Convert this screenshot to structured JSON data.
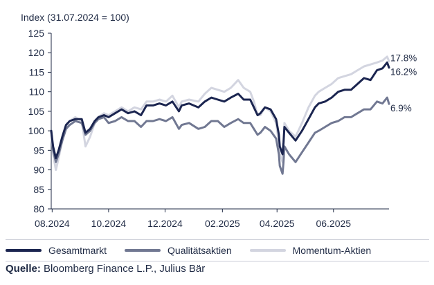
{
  "chart_data": {
    "type": "line",
    "ylabel": "Index (31.07.2024 = 100)",
    "ylim": [
      80,
      125
    ],
    "yticks": [
      80,
      85,
      90,
      95,
      100,
      105,
      110,
      115,
      120,
      125
    ],
    "xlim": [
      "2024-07-31",
      "2025-07-31"
    ],
    "xticks": [
      "2024-08-01",
      "2024-10-01",
      "2024-12-01",
      "2025-02-01",
      "2025-04-01",
      "2025-06-01"
    ],
    "xtick_labels": [
      "08.2024",
      "10.2024",
      "12.2024",
      "02.2025",
      "04.2025",
      "06.2025"
    ],
    "grid": false,
    "legend_position": "bottom",
    "series": [
      {
        "name": "Gesamtmarkt",
        "color": "#1b2550",
        "end_label": "16.2%",
        "x": [
          "2024-07-31",
          "2024-08-02",
          "2024-08-05",
          "2024-08-08",
          "2024-08-12",
          "2024-08-16",
          "2024-08-20",
          "2024-08-26",
          "2024-09-02",
          "2024-09-06",
          "2024-09-11",
          "2024-09-16",
          "2024-09-20",
          "2024-09-26",
          "2024-10-01",
          "2024-10-08",
          "2024-10-15",
          "2024-10-22",
          "2024-10-29",
          "2024-11-05",
          "2024-11-11",
          "2024-11-18",
          "2024-11-25",
          "2024-12-02",
          "2024-12-09",
          "2024-12-16",
          "2024-12-19",
          "2024-12-27",
          "2025-01-06",
          "2025-01-13",
          "2025-01-20",
          "2025-01-27",
          "2025-02-03",
          "2025-02-10",
          "2025-02-18",
          "2025-02-24",
          "2025-03-03",
          "2025-03-07",
          "2025-03-11",
          "2025-03-14",
          "2025-03-19",
          "2025-03-25",
          "2025-03-31",
          "2025-04-03",
          "2025-04-04",
          "2025-04-07",
          "2025-04-08",
          "2025-04-09",
          "2025-04-14",
          "2025-04-21",
          "2025-04-28",
          "2025-05-05",
          "2025-05-12",
          "2025-05-16",
          "2025-05-23",
          "2025-05-30",
          "2025-06-06",
          "2025-06-13",
          "2025-06-20",
          "2025-06-27",
          "2025-07-04",
          "2025-07-11",
          "2025-07-18",
          "2025-07-24",
          "2025-07-29",
          "2025-07-31"
        ],
        "values": [
          100,
          96,
          93,
          95,
          98.5,
          101.5,
          102.5,
          103,
          103,
          99.5,
          100.5,
          102.5,
          103.5,
          104,
          103.5,
          104.5,
          105.5,
          104.5,
          105,
          104,
          106.5,
          106.5,
          107,
          106.5,
          107.5,
          105,
          106.5,
          107,
          106,
          107.5,
          108.5,
          108,
          107.5,
          108.5,
          109.5,
          108,
          108,
          106,
          104,
          104.5,
          106,
          105.5,
          103,
          99,
          96,
          94,
          97,
          101,
          99.5,
          97.5,
          100,
          103,
          106,
          107,
          107.5,
          108.5,
          110,
          110.5,
          110.5,
          112,
          113.5,
          113,
          115.5,
          116,
          117.5,
          116.2
        ]
      },
      {
        "name": "Qualitätsaktien",
        "color": "#717892",
        "end_label": "6.9%",
        "x": [
          "2024-07-31",
          "2024-08-02",
          "2024-08-05",
          "2024-08-08",
          "2024-08-12",
          "2024-08-16",
          "2024-08-20",
          "2024-08-26",
          "2024-09-02",
          "2024-09-06",
          "2024-09-11",
          "2024-09-16",
          "2024-09-20",
          "2024-09-26",
          "2024-10-01",
          "2024-10-08",
          "2024-10-15",
          "2024-10-22",
          "2024-10-29",
          "2024-11-05",
          "2024-11-11",
          "2024-11-18",
          "2024-11-25",
          "2024-12-02",
          "2024-12-09",
          "2024-12-16",
          "2024-12-19",
          "2024-12-27",
          "2025-01-06",
          "2025-01-13",
          "2025-01-20",
          "2025-01-27",
          "2025-02-03",
          "2025-02-10",
          "2025-02-18",
          "2025-02-24",
          "2025-03-03",
          "2025-03-07",
          "2025-03-11",
          "2025-03-14",
          "2025-03-19",
          "2025-03-25",
          "2025-03-31",
          "2025-04-03",
          "2025-04-04",
          "2025-04-07",
          "2025-04-08",
          "2025-04-09",
          "2025-04-14",
          "2025-04-21",
          "2025-04-28",
          "2025-05-05",
          "2025-05-12",
          "2025-05-16",
          "2025-05-23",
          "2025-05-30",
          "2025-06-06",
          "2025-06-13",
          "2025-06-20",
          "2025-06-27",
          "2025-07-04",
          "2025-07-11",
          "2025-07-18",
          "2025-07-24",
          "2025-07-29",
          "2025-07-31"
        ],
        "values": [
          100,
          95,
          92,
          94,
          97.5,
          100.5,
          101.5,
          102.5,
          102,
          99,
          100,
          102,
          103,
          103.5,
          102,
          102.5,
          103.5,
          102.5,
          102.5,
          101,
          102.5,
          102.5,
          103,
          102.5,
          103.5,
          100.5,
          101.5,
          102,
          100.5,
          101,
          102.5,
          102.5,
          101,
          102,
          103,
          102,
          102,
          100.5,
          99,
          99.5,
          101,
          100,
          98,
          94,
          91,
          89,
          92,
          96,
          94,
          92,
          94.5,
          97,
          99.5,
          100,
          101,
          102,
          102.5,
          103.5,
          103.5,
          104.5,
          105.5,
          105.5,
          107.5,
          107,
          108.5,
          106.9
        ]
      },
      {
        "name": "Momentum-Aktien",
        "color": "#d3d5e0",
        "end_label": "17.8%",
        "x": [
          "2024-07-31",
          "2024-08-02",
          "2024-08-05",
          "2024-08-08",
          "2024-08-12",
          "2024-08-16",
          "2024-08-20",
          "2024-08-26",
          "2024-09-02",
          "2024-09-06",
          "2024-09-11",
          "2024-09-16",
          "2024-09-20",
          "2024-09-26",
          "2024-10-01",
          "2024-10-08",
          "2024-10-15",
          "2024-10-22",
          "2024-10-29",
          "2024-11-05",
          "2024-11-11",
          "2024-11-18",
          "2024-11-25",
          "2024-12-02",
          "2024-12-09",
          "2024-12-16",
          "2024-12-19",
          "2024-12-27",
          "2025-01-06",
          "2025-01-13",
          "2025-01-20",
          "2025-01-27",
          "2025-02-03",
          "2025-02-10",
          "2025-02-18",
          "2025-02-24",
          "2025-03-03",
          "2025-03-07",
          "2025-03-11",
          "2025-03-14",
          "2025-03-19",
          "2025-03-25",
          "2025-03-31",
          "2025-04-03",
          "2025-04-04",
          "2025-04-07",
          "2025-04-08",
          "2025-04-09",
          "2025-04-14",
          "2025-04-21",
          "2025-04-28",
          "2025-05-05",
          "2025-05-12",
          "2025-05-16",
          "2025-05-23",
          "2025-05-30",
          "2025-06-06",
          "2025-06-13",
          "2025-06-20",
          "2025-06-27",
          "2025-07-04",
          "2025-07-11",
          "2025-07-18",
          "2025-07-24",
          "2025-07-29",
          "2025-07-31"
        ],
        "values": [
          100,
          94,
          90,
          93,
          97.5,
          101,
          102.5,
          103.5,
          102.5,
          96,
          98.5,
          102,
          103.5,
          104.5,
          104,
          105,
          106,
          105,
          106,
          105.5,
          107.5,
          107.5,
          108,
          107.5,
          109,
          106,
          107.5,
          108,
          107.5,
          109.5,
          111,
          110.5,
          110,
          111,
          113,
          111,
          110,
          107.5,
          104,
          104,
          106,
          105,
          102,
          97,
          94,
          92,
          96,
          102,
          100,
          98.5,
          102,
          106,
          109,
          110,
          111,
          112,
          113.5,
          114,
          114.5,
          115.5,
          116.5,
          117,
          117.5,
          118,
          119,
          117.8
        ]
      }
    ]
  },
  "legend": {
    "items": [
      "Gesamtmarkt",
      "Qualitätsaktien",
      "Momentum-Aktien"
    ]
  },
  "source": {
    "label": "Quelle:",
    "text": "Bloomberg Finance L.P., Julius Bär"
  }
}
